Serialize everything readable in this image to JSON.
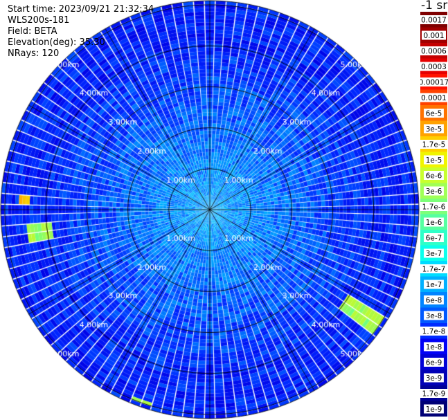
{
  "header": {
    "start_time": "Start time: 2023/09/21 21:32:34",
    "station": "WLS200s-181",
    "field": "Field: BETA",
    "elevation": "Elevation(deg): 35.30",
    "nrays": "NRays: 120"
  },
  "colorbar": {
    "unit": "-1 sr",
    "labels": [
      "0.0017",
      "0.001",
      "0.0006",
      "0.0003",
      "0.00017",
      "0.0001",
      "6e-5",
      "3e-5",
      "1.7e-5",
      "1e-5",
      "6e-6",
      "3e-6",
      "1.7e-6",
      "1e-6",
      "6e-7",
      "3e-7",
      "1.7e-7",
      "1e-7",
      "6e-8",
      "3e-8",
      "1.7e-8",
      "1e-8",
      "6e-9",
      "3e-9",
      "1.7e-9",
      "1e-9"
    ],
    "colors": [
      "#7f0000",
      "#a10000",
      "#c40000",
      "#e60000",
      "#ff1200",
      "#ff4200",
      "#ff7200",
      "#ffa200",
      "#ffcf00",
      "#f0f500",
      "#c8ff2e",
      "#a0ff56",
      "#7dff7a",
      "#56ffa0",
      "#2effc8",
      "#0affec",
      "#00dcff",
      "#00b0ff",
      "#0084ff",
      "#0058ff",
      "#002cff",
      "#0000f6",
      "#0000d6",
      "#0000b6",
      "#000096",
      "#000076"
    ]
  },
  "chart_data": {
    "type": "heatmap",
    "projection": "polar PPI",
    "field": "BETA",
    "elevation_deg": 35.3,
    "nrays": 120,
    "range_ring_labels": [
      "1.00km",
      "2.00km",
      "3.00km",
      "4.00km",
      "5.00km"
    ],
    "range_rings_km": [
      1,
      2,
      3,
      4,
      5
    ],
    "max_range_km": 5.1,
    "radial_spokes": 12,
    "color_scale": "log",
    "value_range": [
      1e-09,
      0.0017
    ],
    "typical_value_near": 3e-07,
    "typical_value_far": 1.7e-08,
    "features": [
      {
        "azimuth_deg": 273,
        "range_km": [
          4.4,
          4.7
        ],
        "value": 6e-05
      },
      {
        "azimuth_deg": 262,
        "range_km": [
          3.9,
          4.5
        ],
        "value": 1e-05
      },
      {
        "azimuth_deg": 125,
        "range_km": [
          4.0,
          5.0
        ],
        "value": 1e-05
      },
      {
        "azimuth_deg": 200,
        "range_km": [
          4.9,
          5.0
        ],
        "value": 1e-05
      }
    ]
  }
}
